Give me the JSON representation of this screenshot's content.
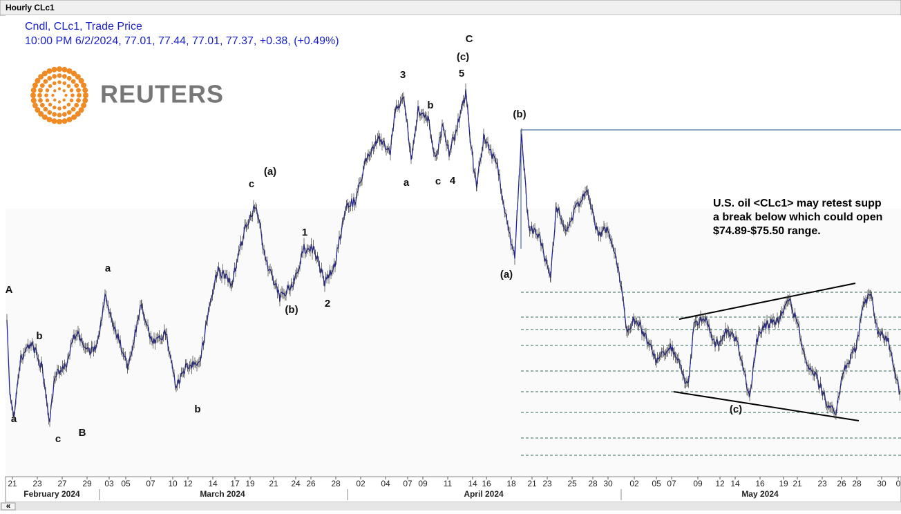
{
  "window_title": "Hourly CLc1",
  "legend": {
    "line1": "Cndl, CLc1, Trade Price",
    "line2": "10:00 PM 6/2/2024, 77.01, 77.44, 77.01, 77.37, +0.38, (+0.49%)"
  },
  "logo": "REUTERS",
  "annotation": [
    "U.S. oil <CLc1> may retest supp",
    "a break below which could open",
    "$74.89-$75.50 range."
  ],
  "wave_labels": [
    "A",
    "a",
    "b",
    "c",
    "B",
    "a",
    "b",
    "c",
    "(a)",
    "(b)",
    "1",
    "2",
    "3",
    "a",
    "b",
    "c",
    "4",
    "5",
    "(c)",
    "C",
    "(b)",
    "(a)",
    "(c)"
  ],
  "day_labels": [
    "21",
    "23",
    "27",
    "29",
    "03",
    "05",
    "07",
    "10",
    "12",
    "14",
    "17",
    "19",
    "21",
    "24",
    "26",
    "28",
    "02",
    "04",
    "07",
    "09",
    "11",
    "14",
    "16",
    "18",
    "21",
    "23",
    "25",
    "28",
    "30",
    "02",
    "05",
    "07",
    "09",
    "12",
    "14",
    "16",
    "19",
    "21",
    "23",
    "26",
    "28",
    "30",
    "0"
  ],
  "month_labels": [
    "February 2024",
    "March 2024",
    "April 2024",
    "May 2024"
  ],
  "scroll_button": "«"
}
